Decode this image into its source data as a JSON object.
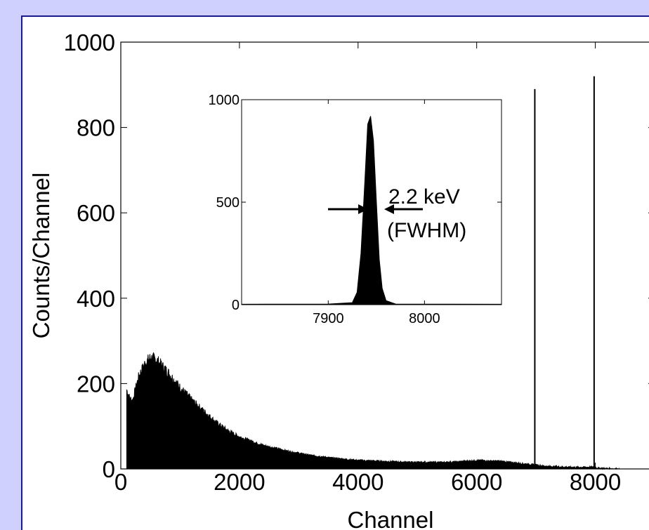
{
  "colors": {
    "background": "#d0d0ff",
    "panel_border": "#1a1a8c",
    "plot_bg": "#ffffff",
    "ink": "#000000"
  },
  "chart_data": [
    {
      "type": "area",
      "xlabel": "Channel",
      "ylabel": "Counts/Channel",
      "xlim": [
        0,
        9000
      ],
      "ylim": [
        0,
        1000
      ],
      "x_ticks": [
        0,
        2000,
        4000,
        6000,
        8000
      ],
      "y_ticks": [
        0,
        200,
        400,
        600,
        800,
        1000
      ],
      "grid": false,
      "series": [
        {
          "x": [
            100,
            150,
            200,
            300,
            400,
            500,
            600,
            700,
            800,
            1000,
            1200,
            1400,
            1600,
            1800,
            2000,
            2400,
            2800,
            3200,
            3600,
            4000,
            4400,
            4800,
            5200,
            5600,
            6000,
            6400,
            6800,
            6960,
            6980,
            7000,
            7020,
            7040,
            7200,
            7600,
            7900,
            7960,
            7980,
            8000,
            8020,
            8040,
            8200,
            8400
          ],
          "y": [
            185,
            165,
            160,
            215,
            245,
            260,
            255,
            240,
            225,
            190,
            160,
            135,
            110,
            90,
            75,
            55,
            42,
            32,
            25,
            20,
            18,
            16,
            15,
            16,
            20,
            18,
            12,
            10,
            890,
            10,
            8,
            8,
            6,
            4,
            4,
            4,
            920,
            4,
            3,
            2,
            1,
            0
          ]
        }
      ]
    },
    {
      "type": "area",
      "xlim": [
        7810,
        8080
      ],
      "ylim": [
        0,
        1000
      ],
      "x_ticks": [
        7900,
        8000
      ],
      "y_ticks": [
        0,
        500,
        1000
      ],
      "grid": false,
      "annotations": [
        "2.2 keV",
        "(FWHM)"
      ],
      "series": [
        {
          "x": [
            7810,
            7900,
            7925,
            7930,
            7934,
            7938,
            7941,
            7944,
            7947,
            7950,
            7953,
            7956,
            7960,
            7970,
            8080
          ],
          "y": [
            2,
            3,
            10,
            60,
            250,
            600,
            880,
            920,
            800,
            500,
            220,
            80,
            20,
            3,
            2
          ]
        }
      ]
    }
  ]
}
